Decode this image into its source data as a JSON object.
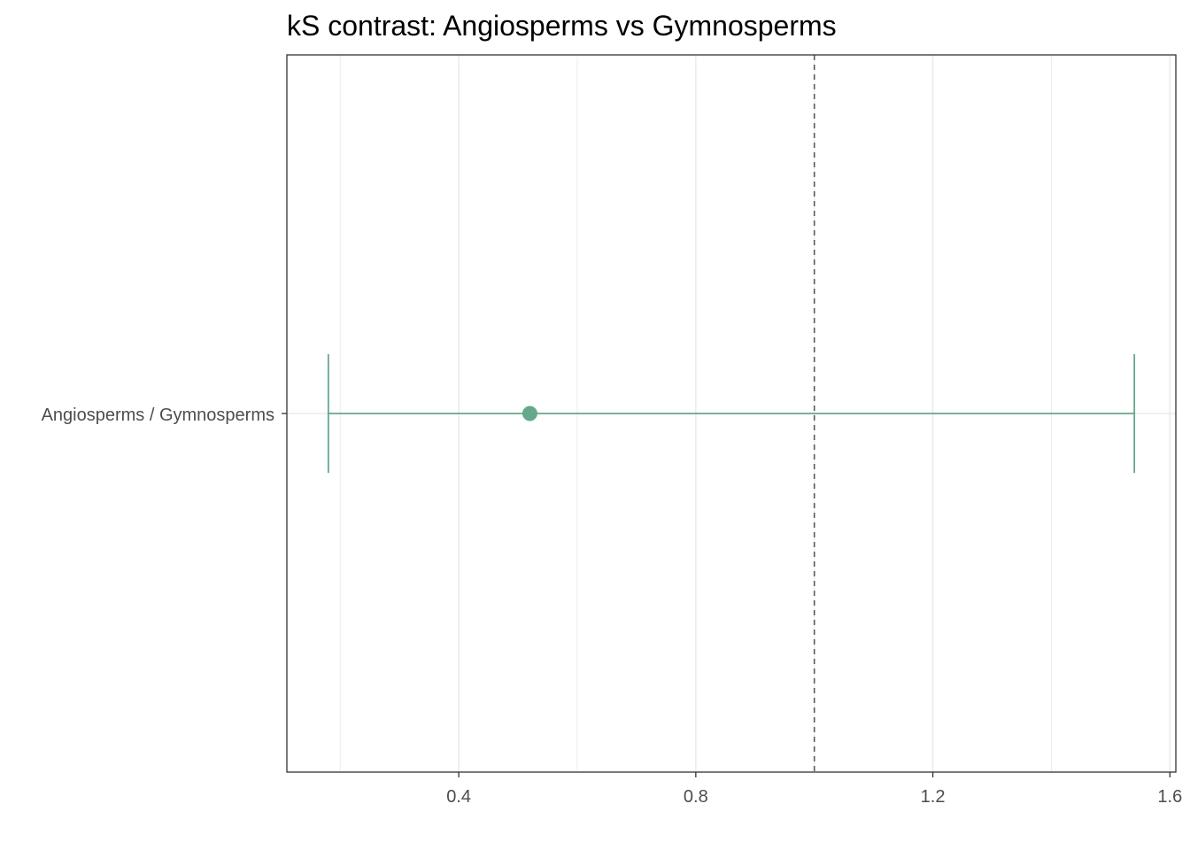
{
  "chart_data": {
    "type": "scatter",
    "title": "kS contrast: Angiosperms vs Gymnosperms",
    "xlabel": "",
    "ylabel": "",
    "xlim": [
      0.11,
      1.61
    ],
    "x_ticks": [
      0.4,
      0.8,
      1.2,
      1.6
    ],
    "x_tick_labels": [
      "0.4",
      "0.8",
      "1.2",
      "1.6"
    ],
    "x_minor_gridlines": [
      0.2,
      0.6,
      1.0,
      1.4
    ],
    "categories": [
      "Angiosperms / Gymnosperms"
    ],
    "points": [
      {
        "category": "Angiosperms / Gymnosperms",
        "estimate": 0.52,
        "lower": 0.18,
        "upper": 1.54
      }
    ],
    "reference_line": {
      "x": 1.0,
      "style": "dashed",
      "color": "#595959"
    },
    "grid": true,
    "legend": "none",
    "colors": {
      "series": "#66a88a",
      "grid": "#ebebeb",
      "frame": "#333333"
    }
  }
}
